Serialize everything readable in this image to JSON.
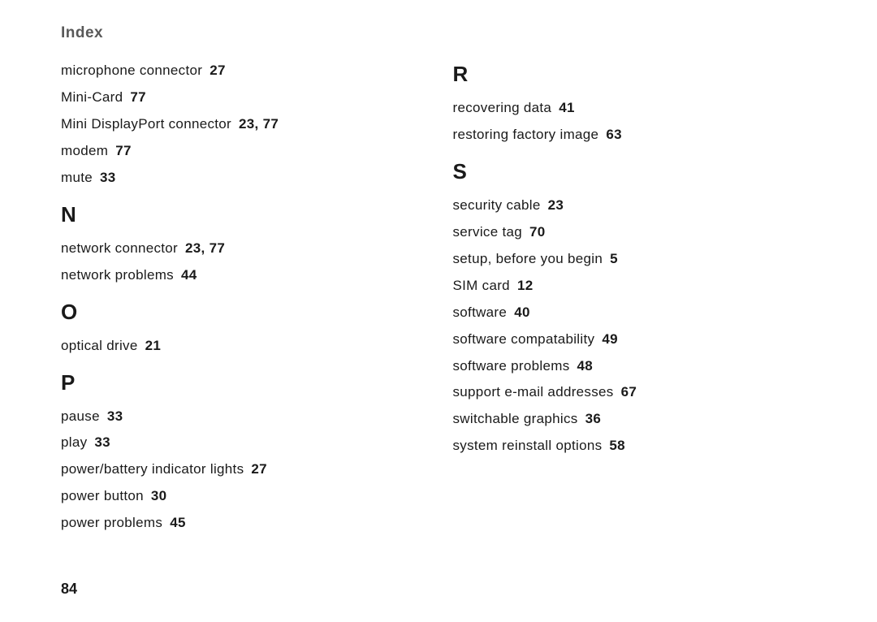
{
  "header": "Index",
  "pageNumber": "84",
  "left": {
    "topEntries": [
      {
        "term": "microphone connector",
        "pages": "27"
      },
      {
        "term": "Mini-Card",
        "pages": "77"
      },
      {
        "term": "Mini DisplayPort connector",
        "pages": "23, 77"
      },
      {
        "term": "modem",
        "pages": "77"
      },
      {
        "term": "mute",
        "pages": "33"
      }
    ],
    "sections": [
      {
        "letter": "N",
        "entries": [
          {
            "term": "network connector",
            "pages": "23, 77"
          },
          {
            "term": "network problems",
            "pages": "44"
          }
        ]
      },
      {
        "letter": "O",
        "entries": [
          {
            "term": "optical drive",
            "pages": "21"
          }
        ]
      },
      {
        "letter": "P",
        "entries": [
          {
            "term": "pause",
            "pages": "33"
          },
          {
            "term": "play",
            "pages": "33"
          },
          {
            "term": "power/battery indicator lights",
            "pages": "27"
          },
          {
            "term": "power button",
            "pages": "30"
          },
          {
            "term": "power problems",
            "pages": "45"
          }
        ]
      }
    ]
  },
  "right": {
    "sections": [
      {
        "letter": "R",
        "entries": [
          {
            "term": "recovering data",
            "pages": "41"
          },
          {
            "term": "restoring factory image",
            "pages": "63"
          }
        ]
      },
      {
        "letter": "S",
        "entries": [
          {
            "term": "security cable",
            "pages": "23"
          },
          {
            "term": "service tag",
            "pages": "70"
          },
          {
            "term": "setup, before you begin",
            "pages": "5"
          },
          {
            "term": "SIM card",
            "pages": "12"
          },
          {
            "term": "software",
            "pages": "40"
          },
          {
            "term": "software compatability",
            "pages": "49"
          },
          {
            "term": "software problems",
            "pages": "48"
          },
          {
            "term": "support e-mail addresses",
            "pages": "67"
          },
          {
            "term": "switchable graphics",
            "pages": "36"
          },
          {
            "term": "system reinstall options",
            "pages": "58"
          }
        ]
      }
    ]
  }
}
